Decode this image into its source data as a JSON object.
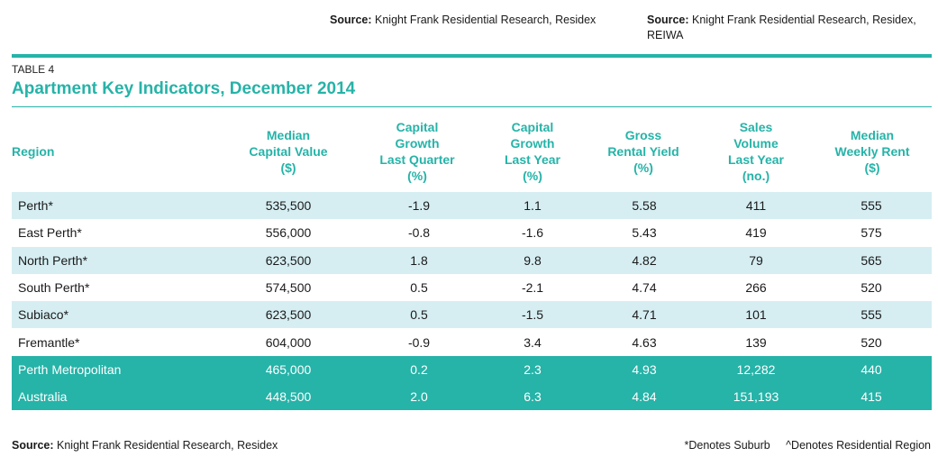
{
  "sources_top": [
    {
      "label": "Source:",
      "text": " Knight Frank Residential Research, Residex"
    },
    {
      "label": "Source:",
      "text": " Knight Frank Residential Research, Residex, REIWA"
    }
  ],
  "table": {
    "label": "TABLE 4",
    "title": "Apartment Key Indicators, December 2014",
    "accent_color": "#26b3a8",
    "alt_row_color": "#d6eef2",
    "headers": [
      [
        "Region"
      ],
      [
        "Median",
        "Capital Value",
        "($)"
      ],
      [
        "Capital",
        "Growth",
        "Last Quarter",
        "(%)"
      ],
      [
        "Capital",
        "Growth",
        "Last Year",
        "(%)"
      ],
      [
        "Gross",
        "Rental Yield",
        "(%)"
      ],
      [
        "Sales",
        "Volume",
        "Last Year",
        "(no.)"
      ],
      [
        "Median",
        "Weekly Rent",
        "($)"
      ]
    ],
    "rows": [
      {
        "cells": [
          "Perth*",
          "535,500",
          "-1.9",
          "1.1",
          "5.58",
          "411",
          "555"
        ],
        "style": "alt"
      },
      {
        "cells": [
          "East Perth*",
          "556,000",
          "-0.8",
          "-1.6",
          "5.43",
          "419",
          "575"
        ],
        "style": "plain"
      },
      {
        "cells": [
          "North Perth*",
          "623,500",
          "1.8",
          "9.8",
          "4.82",
          "79",
          "565"
        ],
        "style": "alt"
      },
      {
        "cells": [
          "South Perth*",
          "574,500",
          "0.5",
          "-2.1",
          "4.74",
          "266",
          "520"
        ],
        "style": "plain"
      },
      {
        "cells": [
          "Subiaco*",
          "623,500",
          "0.5",
          "-1.5",
          "4.71",
          "101",
          "555"
        ],
        "style": "alt"
      },
      {
        "cells": [
          "Fremantle*",
          "604,000",
          "-0.9",
          "3.4",
          "4.63",
          "139",
          "520"
        ],
        "style": "plain"
      },
      {
        "cells": [
          "Perth Metropolitan",
          "465,000",
          "0.2",
          "2.3",
          "4.93",
          "12,282",
          "440"
        ],
        "style": "total"
      },
      {
        "cells": [
          "Australia",
          "448,500",
          "2.0",
          "6.3",
          "4.84",
          "151,193",
          "415"
        ],
        "style": "total"
      }
    ]
  },
  "footer": {
    "source_label": "Source:",
    "source_text": " Knight Frank Residential Research, Residex",
    "notes": [
      "*Denotes Suburb",
      "^Denotes Residential Region"
    ]
  }
}
